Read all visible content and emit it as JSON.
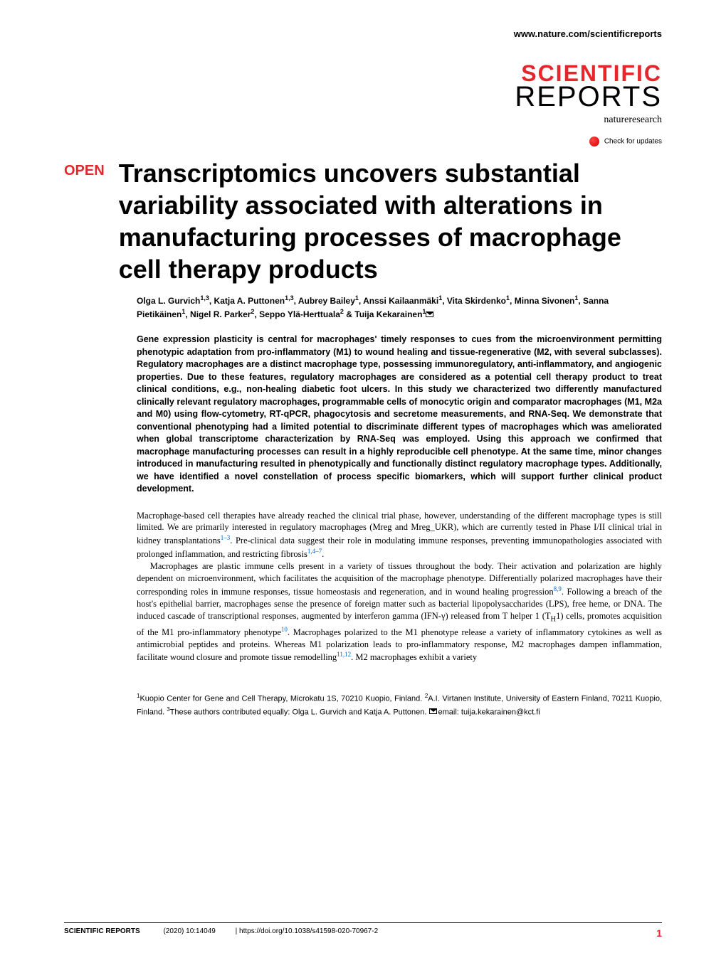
{
  "header": {
    "url": "www.nature.com/scientificreports",
    "logo_scientific": "SCIENTIFIC",
    "logo_reports": "REPORTS",
    "logo_nature": "natureresearch",
    "check_updates": "Check for updates"
  },
  "article": {
    "open_badge": "OPEN",
    "title": "Transcriptomics uncovers substantial variability associated with alterations in manufacturing processes of macrophage cell therapy products",
    "authors_html": "Olga L. Gurvich<sup>1,3</sup>, Katja A. Puttonen<sup>1,3</sup>, Aubrey Bailey<sup>1</sup>, Anssi Kailaanmäki<sup>1</sup>, Vita Skirdenko<sup>1</sup>, Minna Sivonen<sup>1</sup>, Sanna Pietikäinen<sup>1</sup>, Nigel R. Parker<sup>2</sup>, Seppo Ylä-Herttuala<sup>2</sup> & Tuija Kekarainen<sup>1</sup>",
    "abstract": "Gene expression plasticity is central for macrophages' timely responses to cues from the microenvironment permitting phenotypic adaptation from pro-inflammatory (M1) to wound healing and tissue-regenerative (M2, with several subclasses). Regulatory macrophages are a distinct macrophage type, possessing immunoregulatory, anti-inflammatory, and angiogenic properties. Due to these features, regulatory macrophages are considered as a potential cell therapy product to treat clinical conditions, e.g., non-healing diabetic foot ulcers. In this study we characterized two differently manufactured clinically relevant regulatory macrophages, programmable cells of monocytic origin and comparator macrophages (M1, M2a and M0) using flow-cytometry, RT-qPCR, phagocytosis and secretome measurements, and RNA-Seq. We demonstrate that conventional phenotyping had a limited potential to discriminate different types of macrophages which was ameliorated when global transcriptome characterization by RNA-Seq was employed. Using this approach we confirmed that macrophage manufacturing processes can result in a highly reproducible cell phenotype. At the same time, minor changes introduced in manufacturing resulted in phenotypically and functionally distinct regulatory macrophage types. Additionally, we have identified a novel constellation of process specific biomarkers, which will support further clinical product development.",
    "body_p1": "Macrophage-based cell therapies have already reached the clinical trial phase, however, understanding of the different macrophage types is still limited. We are primarily interested in regulatory macrophages (Mreg and Mreg_UKR), which are currently tested in Phase I/II clinical trial in kidney transplantations",
    "body_p1_refs": "1–3",
    "body_p1_cont": ". Pre-clinical data suggest their role in modulating immune responses, preventing immunopathologies associated with prolonged inflammation, and restricting fibrosis",
    "body_p1_refs2": "1,4–7",
    "body_p1_end": ".",
    "body_p2": "Macrophages are plastic immune cells present in a variety of tissues throughout the body. Their activation and polarization are highly dependent on microenvironment, which facilitates the acquisition of the macrophage phenotype. Differentially polarized macrophages have their corresponding roles in immune responses, tissue homeostasis and regeneration, and in wound healing progression",
    "body_p2_refs": "8,9",
    "body_p2_cont": ". Following a breach of the host's epithelial barrier, macrophages sense the presence of foreign matter such as bacterial lipopolysaccharides (LPS), free heme, or DNA. The induced cascade of transcriptional responses, augmented by interferon gamma (IFN-γ) released from T helper 1 (T",
    "body_p2_sub": "H",
    "body_p2_cont2": "1) cells, promotes acquisition of the M1 pro-inflammatory phenotype",
    "body_p2_refs2": "10",
    "body_p2_cont3": ". Macrophages polarized to the M1 phenotype release a variety of inflammatory cytokines as well as antimicrobial peptides and proteins. Whereas M1 polarization leads to pro-inflammatory response, M2 macrophages dampen inflammation, facilitate wound closure and promote tissue remodelling",
    "body_p2_refs3": "11,12",
    "body_p2_end": ". M2 macrophages exhibit a variety",
    "affiliations_html": "<sup>1</sup>Kuopio Center for Gene and Cell Therapy, Microkatu 1S, 70210 Kuopio, Finland. <sup>2</sup>A.I. Virtanen Institute, University of Eastern Finland, 70211 Kuopio, Finland. <sup>3</sup>These authors contributed equally: Olga L. Gurvich and Katja A. Puttonen. ",
    "email_label": "email: ",
    "email": "tuija.kekarainen@kct.fi"
  },
  "footer": {
    "journal": "SCIENTIFIC REPORTS",
    "citation": "(2020) 10:14049",
    "doi": "| https://doi.org/10.1038/s41598-020-70967-2",
    "page": "1"
  },
  "colors": {
    "accent": "#e6262a",
    "link": "#0066cc",
    "text": "#000000",
    "background": "#ffffff"
  }
}
